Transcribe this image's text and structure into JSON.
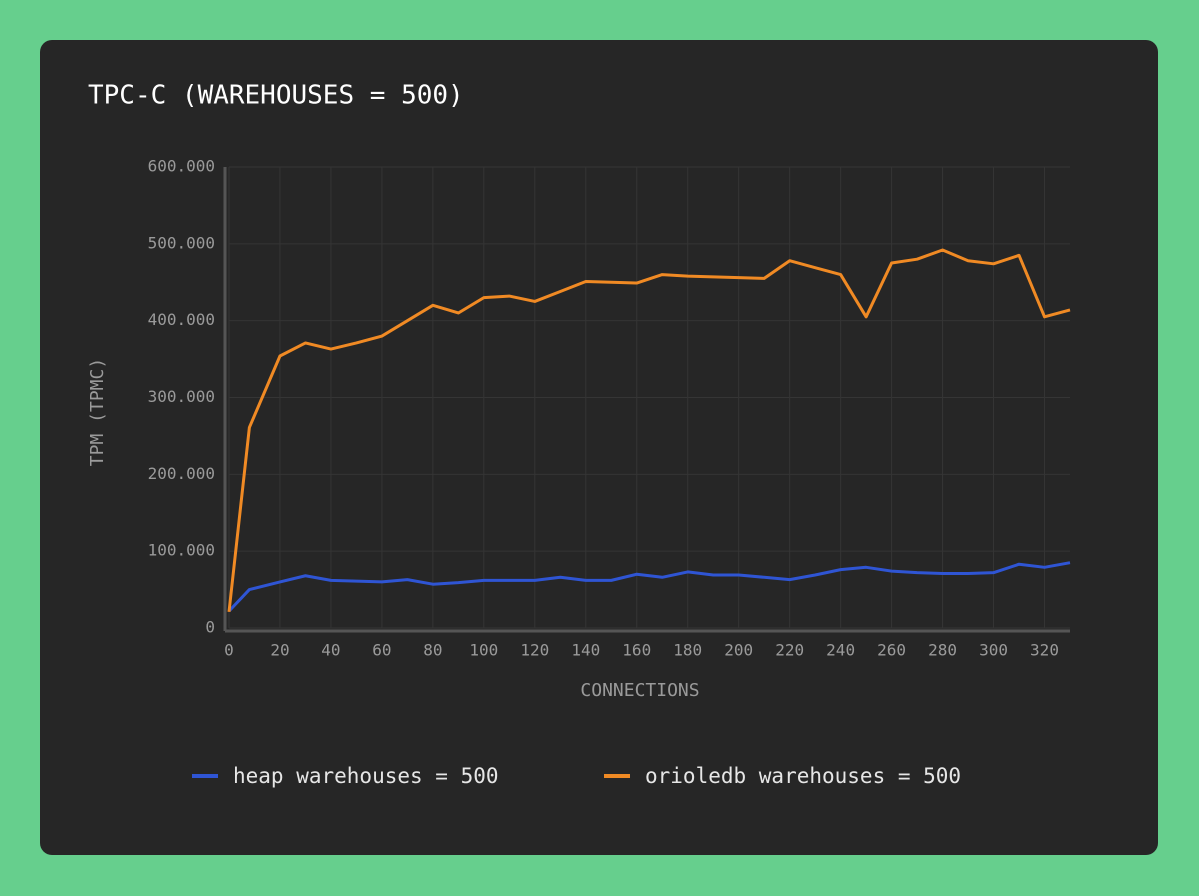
{
  "chart_data": {
    "type": "line",
    "title": "TPC-C (WAREHOUSES = 500)",
    "x_label": "CONNECTIONS",
    "y_label": "TPM (TPMC)",
    "x": [
      0,
      8,
      20,
      30,
      40,
      50,
      60,
      70,
      80,
      90,
      100,
      110,
      120,
      130,
      140,
      150,
      160,
      170,
      180,
      190,
      200,
      210,
      220,
      230,
      240,
      250,
      260,
      270,
      280,
      290,
      300,
      310,
      320,
      330
    ],
    "series": [
      {
        "name": "heap warehouses = 500",
        "color": "#2f55d4",
        "values": [
          22000,
          50000,
          60000,
          68000,
          62000,
          61000,
          60000,
          63000,
          57000,
          59000,
          62000,
          62000,
          62000,
          66000,
          62000,
          62000,
          70000,
          66000,
          73000,
          69000,
          69000,
          66000,
          63000,
          69000,
          76000,
          79000,
          74000,
          72000,
          71000,
          71000,
          72000,
          83000,
          79000,
          85000
        ]
      },
      {
        "name": "orioledb warehouses = 500",
        "color": "#f08a24",
        "values": [
          21000,
          261000,
          354000,
          371000,
          363000,
          371000,
          380000,
          400000,
          420000,
          410000,
          430000,
          432000,
          425000,
          438000,
          451000,
          450000,
          449000,
          460000,
          458000,
          457000,
          456000,
          455000,
          478000,
          469000,
          460000,
          405000,
          475000,
          480000,
          492000,
          478000,
          474000,
          485000,
          405000,
          414000
        ]
      }
    ],
    "xlim": [
      0,
      330
    ],
    "xticks": [
      0,
      20,
      40,
      60,
      80,
      100,
      120,
      140,
      160,
      180,
      200,
      220,
      240,
      260,
      280,
      300,
      320
    ],
    "ylim": [
      0,
      600000
    ],
    "yticks": [
      0,
      {
        "value": 100000,
        "label": "100.000"
      },
      {
        "value": 200000,
        "label": "200.000"
      },
      {
        "value": 300000,
        "label": "300.000"
      },
      {
        "value": 400000,
        "label": "400.000"
      },
      {
        "value": 500000,
        "label": "500.000"
      },
      {
        "value": 600000,
        "label": "600.000"
      }
    ],
    "grid": true
  }
}
